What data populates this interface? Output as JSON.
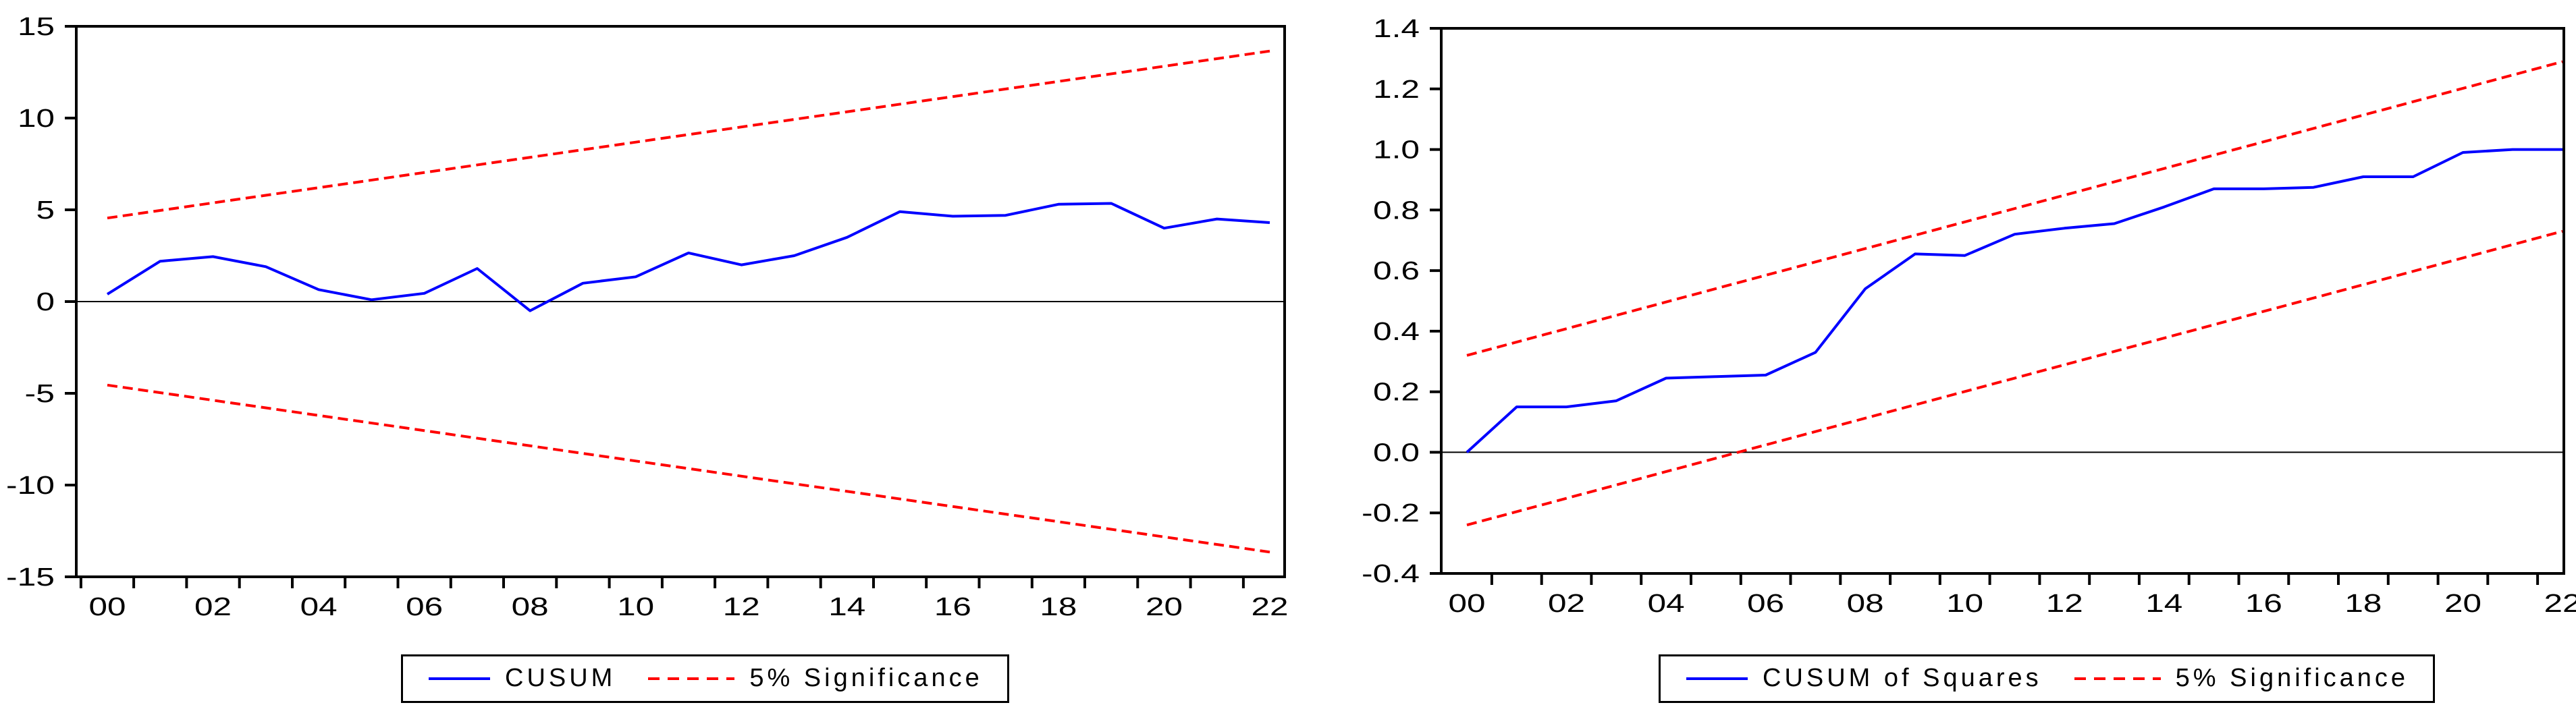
{
  "figure": {
    "background_color": "#ffffff",
    "axis_color": "#000000",
    "cusum_color": "#0000ff",
    "significance_color": "#ff0000"
  },
  "chart_data": [
    {
      "type": "line",
      "name": "CUSUM stability test",
      "title": "",
      "xlabel": "",
      "ylabel": "",
      "ylim": [
        -15,
        15
      ],
      "grid": false,
      "zero_line": true,
      "legend_position": "bottom-center",
      "categories": [
        "00",
        "01",
        "02",
        "03",
        "04",
        "05",
        "06",
        "07",
        "08",
        "09",
        "10",
        "11",
        "12",
        "13",
        "14",
        "15",
        "16",
        "17",
        "18",
        "19",
        "20",
        "21",
        "22"
      ],
      "x_tick_labels": [
        "00",
        "02",
        "04",
        "06",
        "08",
        "10",
        "12",
        "14",
        "16",
        "18",
        "20",
        "22"
      ],
      "y_tick_labels": [
        "15",
        "10",
        "5",
        "0",
        "-5",
        "-10",
        "-15"
      ],
      "series": [
        {
          "name": "CUSUM",
          "color": "#0000ff",
          "dash": false,
          "values": [
            0.4,
            2.2,
            2.45,
            1.9,
            0.65,
            0.1,
            0.45,
            1.8,
            -0.5,
            1.0,
            1.35,
            2.65,
            2.0,
            2.5,
            3.5,
            4.9,
            4.65,
            4.7,
            5.3,
            5.35,
            4.0,
            4.5,
            4.3
          ]
        },
        {
          "name": "5% Significance upper bound",
          "color": "#ff0000",
          "dash": true,
          "x": [
            0,
            22
          ],
          "values": [
            4.55,
            13.65
          ]
        },
        {
          "name": "5% Significance lower bound",
          "color": "#ff0000",
          "dash": true,
          "x": [
            0,
            22
          ],
          "values": [
            -4.55,
            -13.65
          ]
        }
      ],
      "legend": [
        {
          "label": "CUSUM",
          "color": "#0000ff",
          "dash": false
        },
        {
          "label": "5% Significance",
          "color": "#ff0000",
          "dash": true
        }
      ]
    },
    {
      "type": "line",
      "name": "CUSUM of Squares stability test",
      "title": "",
      "xlabel": "",
      "ylabel": "",
      "ylim": [
        -0.4,
        1.4
      ],
      "grid": false,
      "zero_line": true,
      "legend_position": "bottom-center",
      "categories": [
        "00",
        "01",
        "02",
        "03",
        "04",
        "05",
        "06",
        "07",
        "08",
        "09",
        "10",
        "11",
        "12",
        "13",
        "14",
        "15",
        "16",
        "17",
        "18",
        "19",
        "20",
        "21",
        "22"
      ],
      "x_tick_labels": [
        "00",
        "02",
        "04",
        "06",
        "08",
        "10",
        "12",
        "14",
        "16",
        "18",
        "20",
        "22"
      ],
      "y_tick_labels": [
        "1.4",
        "1.2",
        "1.0",
        "0.8",
        "0.6",
        "0.4",
        "0.2",
        "0.0",
        "-0.2",
        "-0.4"
      ],
      "series": [
        {
          "name": "CUSUM of Squares",
          "color": "#0000ff",
          "dash": false,
          "values": [
            0.0,
            0.15,
            0.15,
            0.17,
            0.245,
            0.25,
            0.255,
            0.33,
            0.54,
            0.655,
            0.65,
            0.72,
            0.74,
            0.755,
            0.81,
            0.87,
            0.87,
            0.875,
            0.91,
            0.91,
            0.99,
            1.0,
            1.0
          ]
        },
        {
          "name": "5% Significance upper bound",
          "color": "#ff0000",
          "dash": true,
          "x": [
            0,
            22
          ],
          "values": [
            0.32,
            1.29
          ]
        },
        {
          "name": "5% Significance lower bound",
          "color": "#ff0000",
          "dash": true,
          "x": [
            0,
            22
          ],
          "values": [
            -0.24,
            0.73
          ]
        }
      ],
      "legend": [
        {
          "label": "CUSUM of Squares",
          "color": "#0000ff",
          "dash": false
        },
        {
          "label": "5% Significance",
          "color": "#ff0000",
          "dash": true
        }
      ]
    }
  ]
}
